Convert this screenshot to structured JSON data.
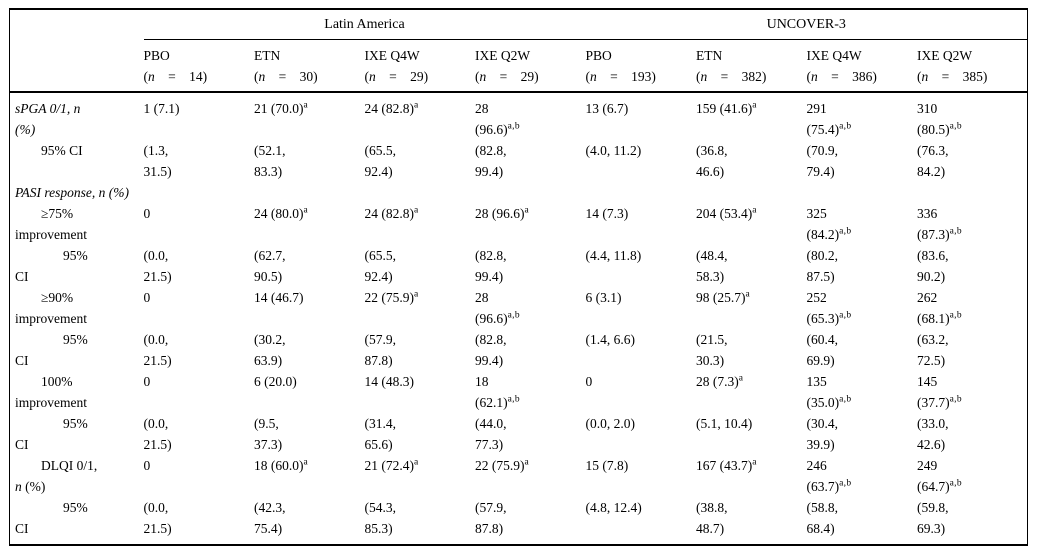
{
  "table": {
    "groups": [
      {
        "title": "Latin America",
        "cols": 4
      },
      {
        "title": "UNCOVER-3",
        "cols": 4
      }
    ],
    "headers": [
      {
        "drug": "PBO",
        "nline": "(*n* = 14)"
      },
      {
        "drug": "ETN",
        "nline": "(*n* = 30)"
      },
      {
        "drug": "IXE Q4W",
        "nline": "(*n* = 29)"
      },
      {
        "drug": "IXE Q2W",
        "nline": "(*n* = 29)"
      },
      {
        "drug": "PBO",
        "nline": "(*n* = 193)"
      },
      {
        "drug": "ETN",
        "nline": "(*n* = 382)"
      },
      {
        "drug": "IXE Q4W",
        "nline": "(*n* = 386)"
      },
      {
        "drug": "IXE Q2W",
        "nline": "(*n* = 385)"
      }
    ],
    "rows": [
      {
        "label": "sPGA 0/1, n\n(%)",
        "italic": true,
        "indent": 0,
        "cells": [
          "1 (7.1)",
          "21 (70.0)^a",
          "24 (82.8)^a",
          "28\n(96.6)^a,b",
          "13 (6.7)",
          "159 (41.6)^a",
          "291\n(75.4)^a,b",
          "310\n(80.5)^a,b"
        ]
      },
      {
        "label": "95% CI",
        "italic": false,
        "indent": 1,
        "cells": [
          "(1.3,\n31.5)",
          "(52.1,\n83.3)",
          "(65.5,\n92.4)",
          "(82.8,\n99.4)",
          "(4.0, 11.2)",
          "(36.8,\n46.6)",
          "(70.9,\n79.4)",
          "(76.3,\n84.2)"
        ]
      },
      {
        "label": "PASI response, n (%)",
        "italic": true,
        "indent": 0,
        "section": true,
        "cells": []
      },
      {
        "label": "≥75%\nimprovement",
        "italic": false,
        "indent": 1,
        "cells": [
          "0",
          "24 (80.0)^a",
          "24 (82.8)^a",
          "28 (96.6)^a",
          "14 (7.3)",
          "204 (53.4)^a",
          "325\n(84.2)^a,b",
          "336\n(87.3)^a,b"
        ]
      },
      {
        "label": "95%\nCI",
        "italic": false,
        "indent": 2,
        "cells": [
          "(0.0,\n21.5)",
          "(62.7,\n90.5)",
          "(65.5,\n92.4)",
          "(82.8,\n99.4)",
          "(4.4, 11.8)",
          "(48.4,\n58.3)",
          "(80.2,\n87.5)",
          "(83.6,\n90.2)"
        ]
      },
      {
        "label": "≥90%\nimprovement",
        "italic": false,
        "indent": 1,
        "cells": [
          "0",
          "14 (46.7)",
          "22 (75.9)^a",
          "28\n(96.6)^a,b",
          "6 (3.1)",
          "98 (25.7)^a",
          "252\n(65.3)^a,b",
          "262\n(68.1)^a,b"
        ]
      },
      {
        "label": "95%\nCI",
        "italic": false,
        "indent": 2,
        "cells": [
          "(0.0,\n21.5)",
          "(30.2,\n63.9)",
          "(57.9,\n87.8)",
          "(82.8,\n99.4)",
          "(1.4, 6.6)",
          "(21.5,\n30.3)",
          "(60.4,\n69.9)",
          "(63.2,\n72.5)"
        ]
      },
      {
        "label": "100%\nimprovement",
        "italic": false,
        "indent": 1,
        "cells": [
          "0",
          "6 (20.0)",
          "14 (48.3)",
          "18\n(62.1)^a,b",
          "0",
          "28 (7.3)^a",
          "135\n(35.0)^a,b",
          "145\n(37.7)^a,b"
        ]
      },
      {
        "label": "95%\nCI",
        "italic": false,
        "indent": 2,
        "cells": [
          "(0.0,\n21.5)",
          "(9.5,\n37.3)",
          "(31.4,\n65.6)",
          "(44.0,\n77.3)",
          "(0.0, 2.0)",
          "(5.1, 10.4)",
          "(30.4,\n39.9)",
          "(33.0,\n42.6)"
        ]
      },
      {
        "label": "DLQI 0/1,\n*n* (%)",
        "italic": false,
        "indent": 1,
        "cells": [
          "0",
          "18 (60.0)^a",
          "21 (72.4)^a",
          "22 (75.9)^a",
          "15 (7.8)",
          "167 (43.7)^a",
          "246\n(63.7)^a,b",
          "249\n(64.7)^a,b"
        ]
      },
      {
        "label": "95%\nCI",
        "italic": false,
        "indent": 2,
        "cells": [
          "(0.0,\n21.5)",
          "(42.3,\n75.4)",
          "(54.3,\n85.3)",
          "(57.9,\n87.8)",
          "(4.8, 12.4)",
          "(38.8,\n48.7)",
          "(58.8,\n68.4)",
          "(59.8,\n69.3)"
        ]
      }
    ]
  }
}
